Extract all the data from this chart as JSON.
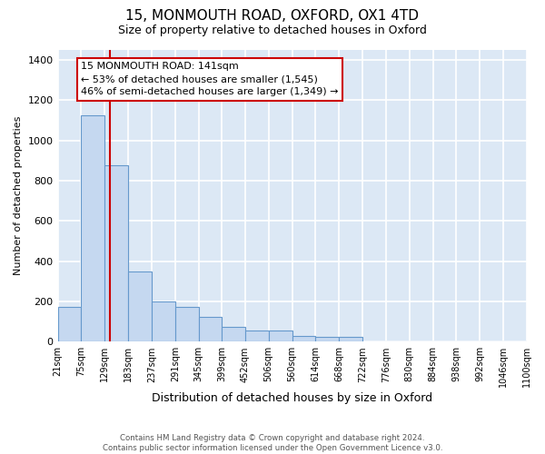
{
  "title_line1": "15, MONMOUTH ROAD, OXFORD, OX1 4TD",
  "title_line2": "Size of property relative to detached houses in Oxford",
  "xlabel": "Distribution of detached houses by size in Oxford",
  "ylabel": "Number of detached properties",
  "footnote": "Contains HM Land Registry data © Crown copyright and database right 2024.\nContains public sector information licensed under the Open Government Licence v3.0.",
  "bin_edges": [
    21,
    75,
    129,
    183,
    237,
    291,
    345,
    399,
    452,
    506,
    560,
    614,
    668,
    722,
    776,
    830,
    884,
    938,
    992,
    1046,
    1100
  ],
  "bar_heights": [
    175,
    1125,
    875,
    350,
    200,
    175,
    125,
    75,
    55,
    55,
    30,
    25,
    25,
    0,
    0,
    0,
    0,
    0,
    0,
    0
  ],
  "bar_color": "#c5d8f0",
  "bar_edge_color": "#6699cc",
  "property_line_x": 141,
  "property_line_color": "#cc0000",
  "annotation_text": "15 MONMOUTH ROAD: 141sqm\n← 53% of detached houses are smaller (1,545)\n46% of semi-detached houses are larger (1,349) →",
  "annotation_box_color": "#cc0000",
  "ylim": [
    0,
    1450
  ],
  "yticks": [
    0,
    200,
    400,
    600,
    800,
    1000,
    1200,
    1400
  ],
  "tick_labels": [
    "21sqm",
    "75sqm",
    "129sqm",
    "183sqm",
    "237sqm",
    "291sqm",
    "345sqm",
    "399sqm",
    "452sqm",
    "506sqm",
    "560sqm",
    "614sqm",
    "668sqm",
    "722sqm",
    "776sqm",
    "830sqm",
    "884sqm",
    "938sqm",
    "992sqm",
    "1046sqm",
    "1100sqm"
  ],
  "background_color": "#dce8f5",
  "grid_color": "#ffffff",
  "title_fontsize": 11,
  "subtitle_fontsize": 9,
  "annotation_fontsize": 8
}
